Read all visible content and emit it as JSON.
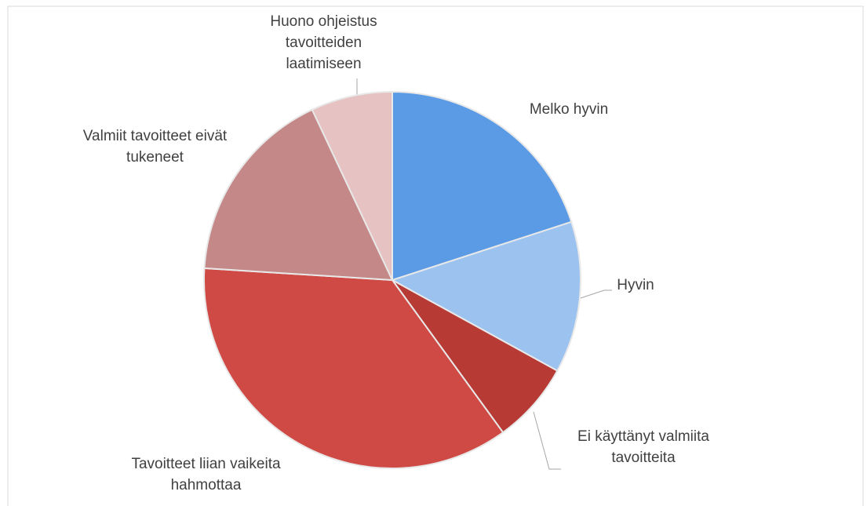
{
  "chart_data": {
    "type": "pie",
    "categories": [
      "Melko hyvin",
      "Hyvin",
      "Ei käyttänyt valmiita tavoitteita",
      "Tavoitteet liian vaikeita hahmottaa",
      "Valmiit tavoitteet eivät tukeneet",
      "Huono ohjeistus tavoitteiden laatimiseen"
    ],
    "values": [
      20,
      13,
      7,
      36,
      17,
      7
    ],
    "colors": [
      "#5b9be5",
      "#9cc3f0",
      "#b83a35",
      "#d04a45",
      "#c48888",
      "#e6c2c2"
    ]
  }
}
